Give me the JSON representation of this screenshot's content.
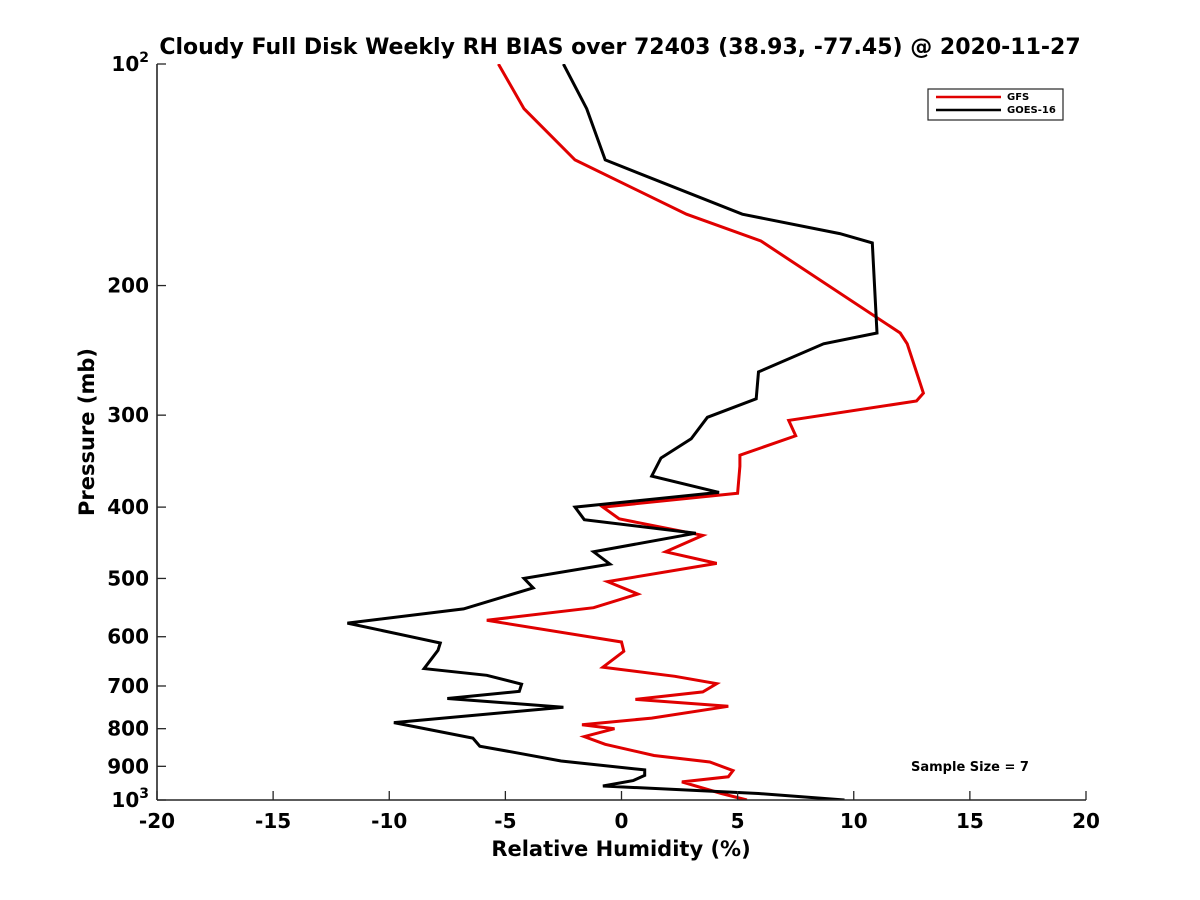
{
  "chart_data": {
    "type": "line",
    "title": "Cloudy Full Disk Weekly RH BIAS over 72403 (38.93, -77.45) @ 2020-11-27",
    "xlabel": "Relative Humidity (%)",
    "ylabel": "Pressure (mb)",
    "xlim": [
      -20,
      20
    ],
    "ylim": [
      100,
      1000
    ],
    "yscale": "log",
    "y_reversed": true,
    "grid": false,
    "legend_position": "top-right",
    "x_ticks": [
      "-20",
      "-15",
      "-10",
      "-5",
      "0",
      "5",
      "10",
      "15",
      "20"
    ],
    "y_ticks": [
      {
        "value": 100,
        "base": "10",
        "exp": "2"
      },
      {
        "value": 200,
        "label": "200"
      },
      {
        "value": 300,
        "label": "300"
      },
      {
        "value": 400,
        "label": "400"
      },
      {
        "value": 500,
        "label": "500"
      },
      {
        "value": 600,
        "label": "600"
      },
      {
        "value": 700,
        "label": "700"
      },
      {
        "value": 800,
        "label": "800"
      },
      {
        "value": 900,
        "label": "900"
      },
      {
        "value": 1000,
        "base": "10",
        "exp": "3"
      }
    ],
    "annotation": "Sample Size = 7",
    "series": [
      {
        "name": "GFS",
        "color": "#e00000",
        "points": [
          [
            -5.3,
            100
          ],
          [
            -4.2,
            115
          ],
          [
            -2.0,
            135
          ],
          [
            2.8,
            160
          ],
          [
            6.0,
            174
          ],
          [
            12.0,
            232
          ],
          [
            12.3,
            240
          ],
          [
            13.0,
            280
          ],
          [
            12.7,
            287
          ],
          [
            7.2,
            305
          ],
          [
            7.5,
            320
          ],
          [
            5.1,
            340
          ],
          [
            5.1,
            352
          ],
          [
            5.0,
            383
          ],
          [
            -0.8,
            400
          ],
          [
            -0.1,
            415
          ],
          [
            3.5,
            437
          ],
          [
            1.9,
            460
          ],
          [
            4.1,
            477
          ],
          [
            -0.6,
            505
          ],
          [
            0.7,
            525
          ],
          [
            -1.2,
            548
          ],
          [
            -5.8,
            570
          ],
          [
            0.0,
            610
          ],
          [
            0.1,
            628
          ],
          [
            -0.8,
            660
          ],
          [
            2.3,
            679
          ],
          [
            4.1,
            695
          ],
          [
            3.5,
            713
          ],
          [
            0.6,
            730
          ],
          [
            4.6,
            746
          ],
          [
            1.3,
            774
          ],
          [
            -1.7,
            790
          ],
          [
            -0.3,
            800
          ],
          [
            -1.6,
            820
          ],
          [
            -0.7,
            840
          ],
          [
            1.4,
            870
          ],
          [
            3.8,
            888
          ],
          [
            4.8,
            912
          ],
          [
            4.6,
            930
          ],
          [
            2.6,
            945
          ],
          [
            4.3,
            980
          ],
          [
            5.4,
            1000
          ]
        ]
      },
      {
        "name": "GOES-16",
        "color": "#000000",
        "points": [
          [
            -2.5,
            100
          ],
          [
            -1.5,
            115
          ],
          [
            -0.7,
            135
          ],
          [
            5.2,
            160
          ],
          [
            9.4,
            170
          ],
          [
            10.8,
            175
          ],
          [
            11.0,
            232
          ],
          [
            8.7,
            240
          ],
          [
            5.9,
            262
          ],
          [
            5.8,
            285
          ],
          [
            3.7,
            302
          ],
          [
            3.0,
            323
          ],
          [
            1.7,
            343
          ],
          [
            1.3,
            363
          ],
          [
            4.2,
            382
          ],
          [
            -2.0,
            400
          ],
          [
            -1.6,
            416
          ],
          [
            3.2,
            434
          ],
          [
            -1.2,
            460
          ],
          [
            -0.5,
            478
          ],
          [
            -4.2,
            500
          ],
          [
            -3.8,
            515
          ],
          [
            -6.8,
            550
          ],
          [
            -11.8,
            575
          ],
          [
            -7.8,
            612
          ],
          [
            -7.9,
            626
          ],
          [
            -8.5,
            663
          ],
          [
            -5.8,
            677
          ],
          [
            -4.3,
            696
          ],
          [
            -4.4,
            712
          ],
          [
            -7.5,
            728
          ],
          [
            -2.5,
            748
          ],
          [
            -9.8,
            785
          ],
          [
            -6.4,
            824
          ],
          [
            -6.1,
            845
          ],
          [
            -4.4,
            864
          ],
          [
            -2.6,
            885
          ],
          [
            1.0,
            910
          ],
          [
            1.0,
            926
          ],
          [
            0.5,
            941
          ],
          [
            -0.8,
            957
          ],
          [
            5.9,
            980
          ],
          [
            9.6,
            1000
          ]
        ]
      }
    ]
  }
}
